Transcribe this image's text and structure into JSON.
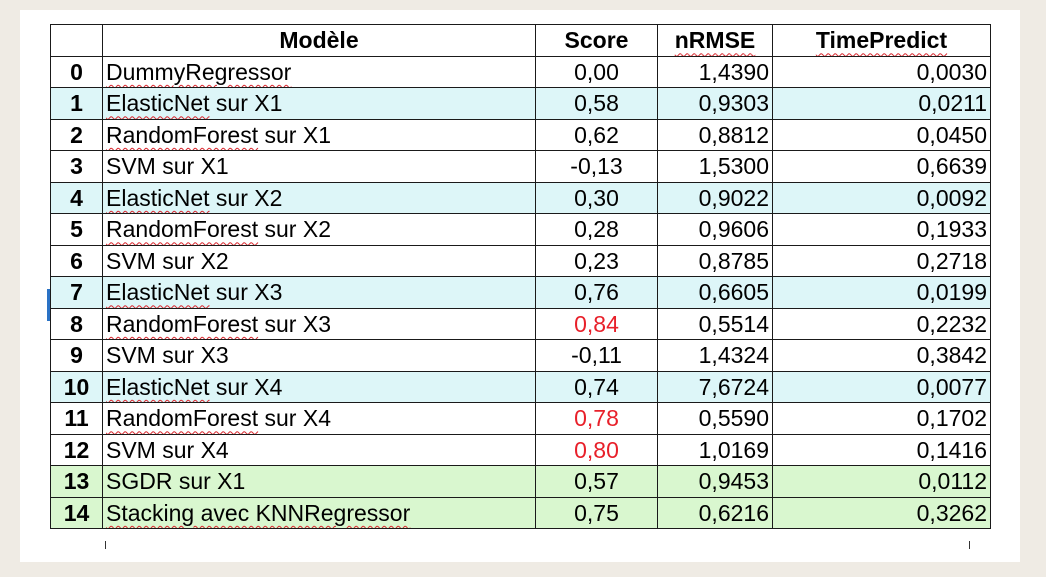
{
  "table": {
    "headers": [
      "",
      "Modèle",
      "Score",
      "nRMSE",
      "TimePredict"
    ],
    "rows": [
      {
        "idx": "0",
        "model": "DummyRegressor",
        "score": "0,00",
        "nrmse": "1,4390",
        "time": "0,0030"
      },
      {
        "idx": "1",
        "model": "ElasticNet sur X1",
        "score": "0,58",
        "nrmse": "0,9303",
        "time": "0,0211"
      },
      {
        "idx": "2",
        "model": "RandomForest sur X1",
        "score": "0,62",
        "nrmse": "0,8812",
        "time": "0,0450"
      },
      {
        "idx": "3",
        "model": "SVM sur X1",
        "score": "-0,13",
        "nrmse": "1,5300",
        "time": "0,6639"
      },
      {
        "idx": "4",
        "model": "ElasticNet sur X2",
        "score": "0,30",
        "nrmse": "0,9022",
        "time": "0,0092"
      },
      {
        "idx": "5",
        "model": "RandomForest sur X2",
        "score": "0,28",
        "nrmse": "0,9606",
        "time": "0,1933"
      },
      {
        "idx": "6",
        "model": "SVM sur X2",
        "score": "0,23",
        "nrmse": "0,8785",
        "time": "0,2718"
      },
      {
        "idx": "7",
        "model": "ElasticNet sur X3",
        "score": "0,76",
        "nrmse": "0,6605",
        "time": "0,0199"
      },
      {
        "idx": "8",
        "model": "RandomForest sur X3",
        "score": "0,84",
        "nrmse": "0,5514",
        "time": "0,2232"
      },
      {
        "idx": "9",
        "model": "SVM sur X3",
        "score": "-0,11",
        "nrmse": "1,4324",
        "time": "0,3842"
      },
      {
        "idx": "10",
        "model": "ElasticNet sur X4",
        "score": "0,74",
        "nrmse": "7,6724",
        "time": "0,0077"
      },
      {
        "idx": "11",
        "model": "RandomForest sur X4",
        "score": "0,78",
        "nrmse": "0,5590",
        "time": "0,1702"
      },
      {
        "idx": "12",
        "model": "SVM sur X4",
        "score": "0,80",
        "nrmse": "1,0169",
        "time": "0,1416"
      },
      {
        "idx": "13",
        "model": "SGDR sur X1",
        "score": "0,57",
        "nrmse": "0,9453",
        "time": "0,0112"
      },
      {
        "idx": "14",
        "model": "Stacking avec KNNRegressor",
        "score": "0,75",
        "nrmse": "0,6216",
        "time": "0,3262"
      }
    ]
  },
  "colors": {
    "page_background": "#efebe4",
    "row_blue": "#ddf6f8",
    "row_green": "#d9f7cf",
    "highlight_red": "#e8202a",
    "selection_marker": "#2a72c5"
  }
}
